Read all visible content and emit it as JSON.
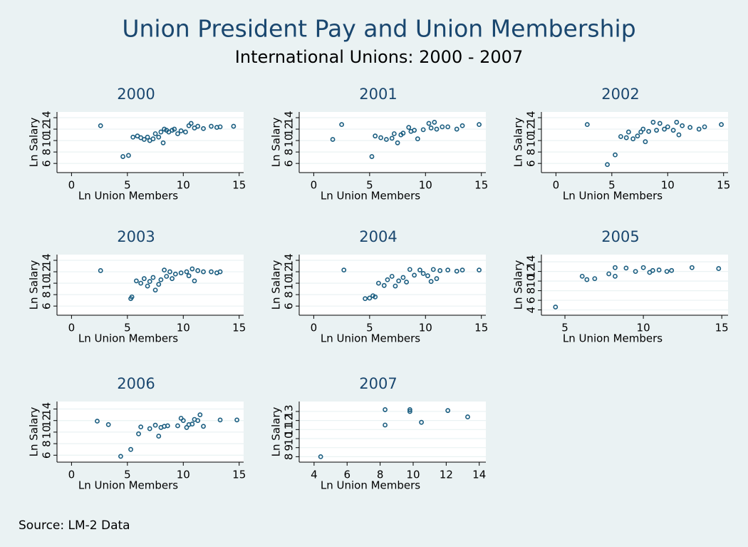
{
  "title": "Union President Pay and Union Membership",
  "subtitle": "International Unions: 2000 - 2007",
  "note": "Source: LM-2 Data",
  "chart_data": [
    {
      "type": "scatter",
      "title": "2000",
      "xlabel": "Ln Union Members",
      "ylabel": "Ln Salary",
      "color": "#1a5d80",
      "grid": true,
      "xlim": [
        -1.3,
        15.4
      ],
      "ylim": [
        4.4,
        15
      ],
      "xticks": [
        0,
        5,
        10,
        15
      ],
      "yticks": [
        6,
        8,
        10,
        12,
        14
      ],
      "x": [
        2.6,
        4.6,
        5.1,
        5.5,
        5.9,
        6.2,
        6.5,
        6.8,
        7.0,
        7.3,
        7.5,
        7.8,
        8.0,
        8.2,
        8.3,
        8.5,
        8.7,
        9.0,
        9.2,
        9.5,
        9.8,
        10.2,
        10.5,
        10.7,
        11.0,
        11.3,
        11.8,
        12.5,
        13.0,
        13.3,
        14.5
      ],
      "y": [
        12.6,
        7.2,
        7.4,
        10.6,
        10.8,
        10.5,
        10.2,
        10.6,
        10.0,
        10.3,
        11.2,
        10.6,
        11.5,
        9.6,
        12.0,
        11.8,
        11.5,
        11.8,
        12.0,
        11.2,
        11.7,
        11.5,
        12.6,
        13.0,
        12.2,
        12.5,
        12.1,
        12.5,
        12.3,
        12.4,
        12.5
      ]
    },
    {
      "type": "scatter",
      "title": "2001",
      "xlabel": "Ln Union Members",
      "ylabel": "Ln Salary",
      "color": "#1a5d80",
      "grid": true,
      "xlim": [
        -1.3,
        15.4
      ],
      "ylim": [
        4.4,
        15
      ],
      "xticks": [
        0,
        5,
        10,
        15
      ],
      "yticks": [
        6,
        8,
        10,
        12,
        14
      ],
      "x": [
        1.7,
        2.5,
        5.2,
        5.5,
        6.0,
        6.5,
        7.0,
        7.2,
        7.5,
        7.8,
        8.0,
        8.5,
        8.7,
        9.0,
        9.3,
        9.8,
        10.3,
        10.5,
        10.8,
        11.0,
        11.5,
        12.0,
        12.8,
        13.3,
        14.8
      ],
      "y": [
        10.2,
        12.8,
        7.2,
        10.8,
        10.5,
        10.2,
        10.4,
        11.2,
        9.6,
        11.0,
        11.3,
        12.3,
        11.6,
        11.8,
        10.3,
        11.9,
        13.0,
        12.2,
        13.2,
        12.0,
        12.4,
        12.4,
        12.0,
        12.6,
        12.8
      ]
    },
    {
      "type": "scatter",
      "title": "2002",
      "xlabel": "Ln Union Members",
      "ylabel": "Ln Salary",
      "color": "#1a5d80",
      "grid": true,
      "xlim": [
        -1.3,
        15.4
      ],
      "ylim": [
        4.4,
        15
      ],
      "xticks": [
        0,
        5,
        10,
        15
      ],
      "yticks": [
        6,
        8,
        10,
        12,
        14
      ],
      "x": [
        2.8,
        4.6,
        5.3,
        5.8,
        6.3,
        6.5,
        6.9,
        7.3,
        7.6,
        7.8,
        8.0,
        8.3,
        8.7,
        9.0,
        9.3,
        9.7,
        10.0,
        10.5,
        10.8,
        11.0,
        11.3,
        12.0,
        12.8,
        13.3,
        14.8
      ],
      "y": [
        12.8,
        5.8,
        7.5,
        10.7,
        10.5,
        11.5,
        10.3,
        10.8,
        11.5,
        12.0,
        9.8,
        11.6,
        13.2,
        11.8,
        13.0,
        12.0,
        12.4,
        11.8,
        13.2,
        11.0,
        12.6,
        12.3,
        12.0,
        12.4,
        12.8
      ]
    },
    {
      "type": "scatter",
      "title": "2003",
      "xlabel": "Ln Union Members",
      "ylabel": "Ln Salary",
      "color": "#1a5d80",
      "grid": true,
      "xlim": [
        -1.3,
        15.4
      ],
      "ylim": [
        4.4,
        15
      ],
      "xticks": [
        0,
        5,
        10,
        15
      ],
      "yticks": [
        6,
        8,
        10,
        12,
        14
      ],
      "x": [
        2.6,
        5.3,
        5.4,
        5.8,
        6.2,
        6.5,
        6.8,
        7.0,
        7.3,
        7.5,
        7.8,
        8.0,
        8.3,
        8.5,
        8.8,
        9.0,
        9.3,
        9.8,
        10.3,
        10.5,
        10.8,
        11.0,
        11.3,
        11.8,
        12.5,
        13.0,
        13.3
      ],
      "y": [
        12.2,
        7.3,
        7.6,
        10.4,
        10.0,
        10.8,
        9.5,
        10.3,
        11.0,
        8.8,
        9.8,
        10.6,
        12.3,
        11.2,
        12.0,
        10.8,
        11.6,
        11.8,
        12.0,
        11.3,
        12.5,
        10.4,
        12.2,
        12.0,
        12.0,
        11.8,
        12.0
      ]
    },
    {
      "type": "scatter",
      "title": "2004",
      "xlabel": "Ln Union Members",
      "ylabel": "Ln Salary",
      "color": "#1a5d80",
      "grid": true,
      "xlim": [
        -1.3,
        15.4
      ],
      "ylim": [
        4.4,
        15
      ],
      "xticks": [
        0,
        5,
        10,
        15
      ],
      "yticks": [
        6,
        8,
        10,
        12,
        14
      ],
      "x": [
        2.7,
        4.6,
        5.0,
        5.3,
        5.5,
        5.8,
        6.3,
        6.6,
        7.0,
        7.3,
        7.6,
        8.0,
        8.3,
        8.6,
        9.0,
        9.5,
        9.8,
        10.2,
        10.5,
        10.7,
        11.0,
        11.3,
        12.0,
        12.8,
        13.3,
        14.8
      ],
      "y": [
        12.3,
        7.3,
        7.4,
        7.8,
        7.6,
        10.0,
        9.6,
        10.6,
        11.2,
        9.5,
        10.4,
        11.0,
        10.2,
        12.4,
        11.4,
        12.3,
        11.7,
        11.3,
        10.3,
        12.4,
        10.8,
        12.2,
        12.3,
        12.1,
        12.3,
        12.3
      ]
    },
    {
      "type": "scatter",
      "title": "2005",
      "xlabel": "Ln Union Members",
      "ylabel": "Ln Salary",
      "color": "#1a5d80",
      "grid": true,
      "xlim": [
        3.5,
        15.4
      ],
      "ylim": [
        2.9,
        15.5
      ],
      "xticks": [
        5,
        10,
        15
      ],
      "yticks": [
        4,
        6,
        8,
        10,
        12,
        14
      ],
      "x": [
        4.4,
        6.1,
        6.4,
        6.9,
        7.8,
        8.2,
        8.2,
        8.9,
        9.5,
        10.0,
        10.4,
        10.6,
        11.0,
        11.5,
        11.8,
        13.1,
        14.8
      ],
      "y": [
        4.6,
        11.0,
        10.3,
        10.5,
        11.5,
        11.0,
        12.8,
        12.7,
        12.0,
        12.8,
        11.8,
        12.2,
        12.3,
        12.0,
        12.2,
        12.8,
        12.6
      ]
    },
    {
      "type": "scatter",
      "title": "2006",
      "xlabel": "Ln Union Members",
      "ylabel": "Ln Salary",
      "color": "#1a5d80",
      "grid": true,
      "xlim": [
        -1.3,
        15.4
      ],
      "ylim": [
        4.8,
        15.3
      ],
      "xticks": [
        0,
        5,
        10,
        15
      ],
      "yticks": [
        6,
        8,
        10,
        12,
        14
      ],
      "x": [
        2.3,
        3.3,
        4.4,
        5.3,
        6.0,
        6.2,
        7.0,
        7.5,
        7.8,
        8.0,
        8.3,
        8.6,
        9.5,
        9.8,
        10.0,
        10.3,
        10.5,
        10.8,
        11.0,
        11.3,
        11.5,
        11.8,
        13.3,
        14.8
      ],
      "y": [
        11.9,
        11.3,
        5.8,
        7.0,
        9.7,
        10.9,
        10.6,
        11.2,
        9.3,
        10.8,
        11.0,
        11.1,
        11.1,
        12.4,
        12.0,
        10.8,
        11.3,
        11.4,
        12.2,
        12.0,
        13.0,
        11.0,
        12.1,
        12.1
      ]
    },
    {
      "type": "scatter",
      "title": "2007",
      "xlabel": "Ln Union Members",
      "ylabel": "Ln Salary",
      "color": "#1a5d80",
      "grid": true,
      "xlim": [
        3.1,
        14.4
      ],
      "ylim": [
        7.4,
        14.1
      ],
      "xticks": [
        4,
        6,
        8,
        10,
        12,
        14
      ],
      "yticks": [
        8,
        9,
        10,
        11,
        12,
        13
      ],
      "x": [
        4.4,
        8.3,
        8.3,
        9.8,
        9.8,
        10.5,
        12.1,
        13.3
      ],
      "y": [
        8.0,
        13.2,
        11.5,
        13.2,
        13.0,
        11.8,
        13.1,
        12.4
      ]
    }
  ]
}
